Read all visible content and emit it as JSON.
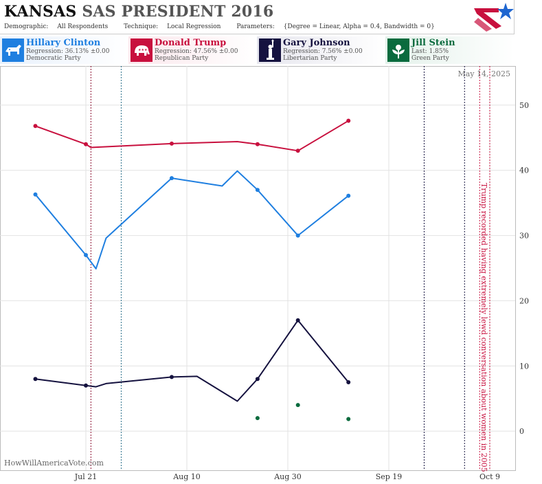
{
  "header": {
    "state": "KANSAS",
    "pollster": "SAS PRESIDENT 2016",
    "demographic_label": "Demographic:",
    "demographic": "All Respondents",
    "technique_label": "Technique:",
    "technique": "Local Regression",
    "parameters_label": "Parameters:",
    "parameters": "{Degree = Linear, Alpha = 0.4, Bandwidth = 0}"
  },
  "candidates": [
    {
      "name": "Hillary Clinton",
      "stat": "Regression: 36.13% ±0.00",
      "party": "Democratic Party",
      "color": "#1f7fe0",
      "icon": "donkey-icon"
    },
    {
      "name": "Donald Trump",
      "stat": "Regression: 47.56% ±0.00",
      "party": "Republican Party",
      "color": "#c8103e",
      "icon": "elephant-icon"
    },
    {
      "name": "Gary Johnson",
      "stat": "Regression: 7.56% ±0.00",
      "party": "Libertarian Party",
      "color": "#15123f",
      "icon": "liberty-statue-icon"
    },
    {
      "name": "Jill Stein",
      "stat": "Last: 1.85%",
      "party": "Green Party",
      "color": "#0a6b3e",
      "icon": "leaf-flower-icon"
    }
  ],
  "watermark": "HowWillAmericaVote.com",
  "chart_data": {
    "type": "line",
    "date_label": "May 14, 2025",
    "x_ticks": [
      "Jul 21",
      "Aug 10",
      "Aug 30",
      "Sep 19",
      "Oct 9"
    ],
    "y_ticks": [
      0,
      10,
      20,
      30,
      40,
      50
    ],
    "ylim": [
      -6,
      56
    ],
    "grid": true,
    "annotation": "Trump recorded having extremely lewd conversation about women in 2005",
    "series": [
      {
        "name": "Hillary Clinton",
        "color": "#1f7fe0",
        "points": [
          [
            "Jul 11",
            36.3
          ],
          [
            "Jul 21",
            27.0
          ],
          [
            "Aug 7",
            38.8
          ],
          [
            "Aug 24",
            37.0
          ],
          [
            "Sep 1",
            30.0
          ],
          [
            "Sep 11",
            36.1
          ]
        ],
        "line": [
          [
            "Jul 11",
            36.3
          ],
          [
            "Jul 21",
            27.0
          ],
          [
            "Jul 23",
            24.9
          ],
          [
            "Jul 25",
            29.6
          ],
          [
            "Aug 7",
            38.8
          ],
          [
            "Aug 17",
            37.6
          ],
          [
            "Aug 20",
            39.9
          ],
          [
            "Aug 24",
            37.0
          ],
          [
            "Sep 1",
            30.0
          ],
          [
            "Sep 11",
            36.1
          ]
        ]
      },
      {
        "name": "Donald Trump",
        "color": "#c8103e",
        "points": [
          [
            "Jul 11",
            46.8
          ],
          [
            "Jul 21",
            44.0
          ],
          [
            "Aug 7",
            44.1
          ],
          [
            "Aug 24",
            44.0
          ],
          [
            "Sep 1",
            43.0
          ],
          [
            "Sep 11",
            47.6
          ]
        ],
        "line": [
          [
            "Jul 11",
            46.8
          ],
          [
            "Jul 21",
            44.0
          ],
          [
            "Jul 22",
            43.5
          ],
          [
            "Aug 7",
            44.1
          ],
          [
            "Aug 20",
            44.4
          ],
          [
            "Aug 24",
            44.0
          ],
          [
            "Sep 1",
            43.0
          ],
          [
            "Sep 11",
            47.6
          ]
        ]
      },
      {
        "name": "Gary Johnson",
        "color": "#15123f",
        "points": [
          [
            "Jul 11",
            8.0
          ],
          [
            "Jul 21",
            7.0
          ],
          [
            "Aug 7",
            8.3
          ],
          [
            "Aug 24",
            8.0
          ],
          [
            "Sep 1",
            17.0
          ],
          [
            "Sep 11",
            7.5
          ]
        ],
        "line": [
          [
            "Jul 11",
            8.0
          ],
          [
            "Jul 21",
            7.0
          ],
          [
            "Jul 23",
            6.8
          ],
          [
            "Jul 25",
            7.3
          ],
          [
            "Aug 7",
            8.3
          ],
          [
            "Aug 12",
            8.4
          ],
          [
            "Aug 20",
            4.6
          ],
          [
            "Aug 24",
            8.0
          ],
          [
            "Sep 1",
            17.0
          ],
          [
            "Sep 11",
            7.5
          ]
        ]
      },
      {
        "name": "Jill Stein",
        "color": "#0a6b3e",
        "points": [
          [
            "Aug 24",
            2.0
          ],
          [
            "Sep 1",
            4.0
          ],
          [
            "Sep 11",
            1.85
          ]
        ],
        "line": []
      }
    ],
    "vlines": [
      {
        "date": "Jul 22",
        "color": "#8a1030",
        "style": "dotted"
      },
      {
        "date": "Jul 28",
        "color": "#2a6f8a",
        "style": "dotted"
      },
      {
        "date": "Sep 26",
        "color": "#15123f",
        "style": "dotted"
      },
      {
        "date": "Oct 4",
        "color": "#15123f",
        "style": "dotted"
      },
      {
        "date": "Oct 7",
        "color": "#c8103e",
        "style": "dotted"
      },
      {
        "date": "Oct 9",
        "color": "#c8103e",
        "style": "dotted"
      }
    ]
  }
}
